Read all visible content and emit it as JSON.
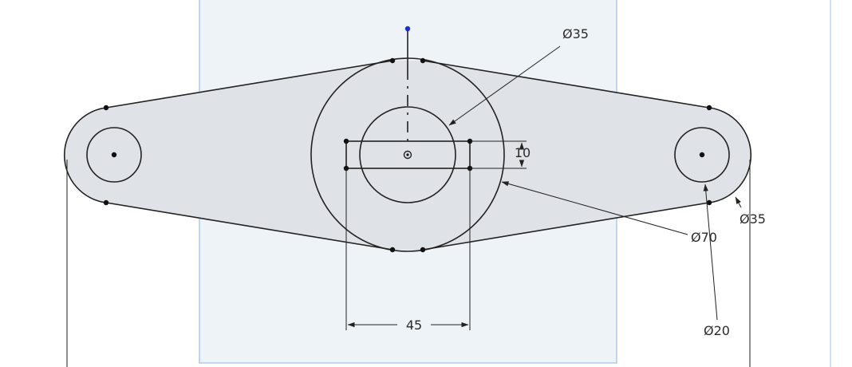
{
  "sketch": {
    "sketch_plane_color": "#eef3f8",
    "sketch_plane_border_color": "#9cc0e6",
    "region_fill_color": "#dfe2e7",
    "line_color": "#222222",
    "origin_point_color": "#1a2ecf",
    "dimensions": {
      "center_hole_diameter": "Ø35",
      "slot_height": "10",
      "hub_diameter": "Ø70",
      "right_boss_diameter": "Ø35",
      "right_hole_diameter": "Ø20",
      "slot_width": "45"
    }
  }
}
